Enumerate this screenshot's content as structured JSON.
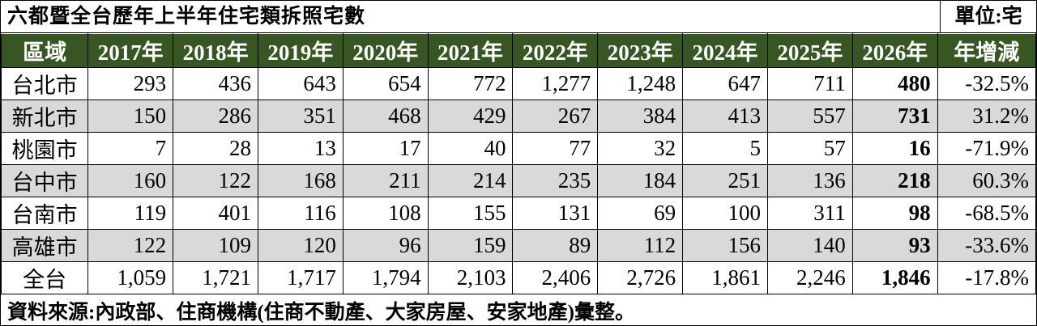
{
  "header": {
    "title": "六都暨全台歷年上半年住宅類拆照宅數",
    "unit": "單位:宅"
  },
  "table": {
    "columns": [
      "區域",
      "2017年",
      "2018年",
      "2019年",
      "2020年",
      "2021年",
      "2022年",
      "2023年",
      "2024年",
      "2025年",
      "2026年",
      "年增減"
    ],
    "rows": [
      [
        "台北市",
        "293",
        "436",
        "643",
        "654",
        "772",
        "1,277",
        "1,248",
        "647",
        "711",
        "480",
        "-32.5%"
      ],
      [
        "新北市",
        "150",
        "286",
        "351",
        "468",
        "429",
        "267",
        "384",
        "413",
        "557",
        "731",
        "31.2%"
      ],
      [
        "桃園市",
        "7",
        "28",
        "13",
        "17",
        "40",
        "77",
        "32",
        "5",
        "57",
        "16",
        "-71.9%"
      ],
      [
        "台中市",
        "160",
        "122",
        "168",
        "211",
        "214",
        "235",
        "184",
        "251",
        "136",
        "218",
        "60.3%"
      ],
      [
        "台南市",
        "119",
        "401",
        "116",
        "108",
        "155",
        "131",
        "69",
        "100",
        "311",
        "98",
        "-68.5%"
      ],
      [
        "高雄市",
        "122",
        "109",
        "120",
        "96",
        "159",
        "89",
        "112",
        "156",
        "140",
        "93",
        "-33.6%"
      ],
      [
        "全台",
        "1,059",
        "1,721",
        "1,717",
        "1,794",
        "2,103",
        "2,406",
        "2,726",
        "1,861",
        "2,246",
        "1,846",
        "-17.8%"
      ]
    ]
  },
  "footer": {
    "note": "資料來源:內政部、住商機構(住商不動產、大家房屋、安家地產)彙整。"
  }
}
